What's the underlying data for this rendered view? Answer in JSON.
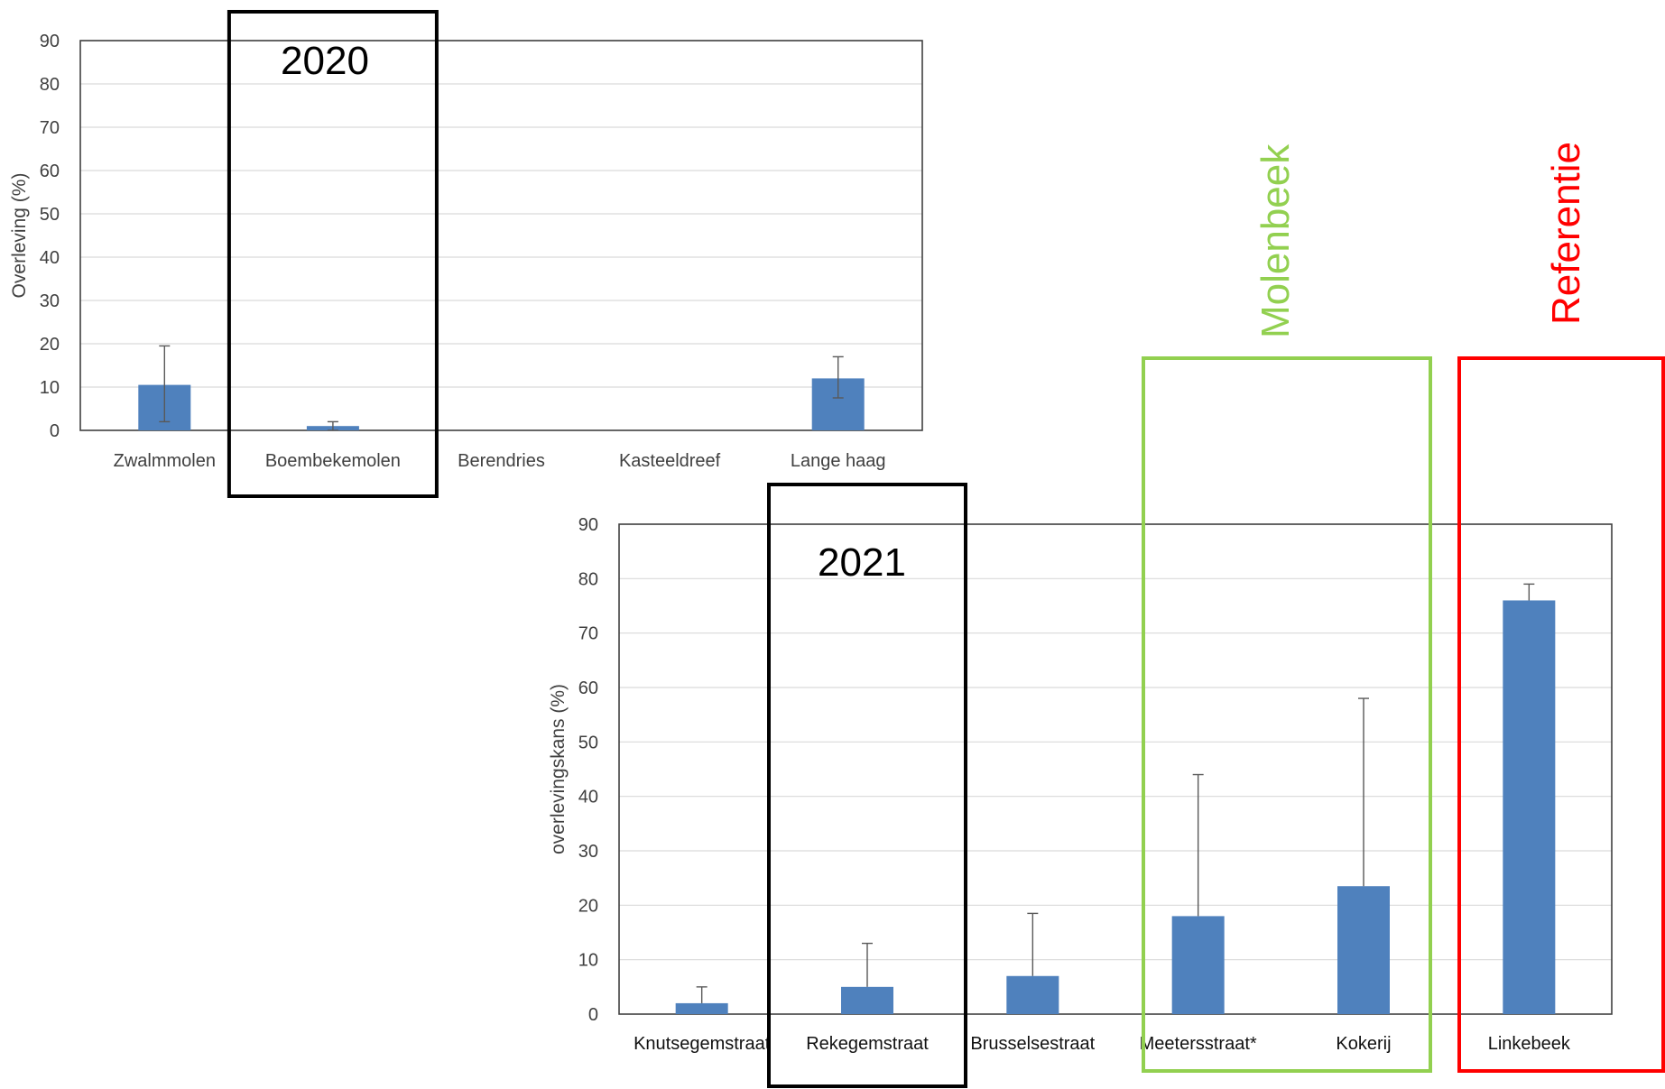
{
  "chart_data": [
    {
      "type": "bar",
      "title": "2020",
      "ylabel": "Overleving (%)",
      "ylim": [
        0,
        90
      ],
      "yticks": [
        0,
        10,
        20,
        30,
        40,
        50,
        60,
        70,
        80,
        90
      ],
      "grid": true,
      "categories": [
        "Zwalmmolen",
        "Boembekemolen",
        "Berendries",
        "Kasteeldreef",
        "Lange haag"
      ],
      "values": [
        10.5,
        1,
        0,
        0,
        12
      ],
      "error_upper": [
        19.5,
        2,
        0,
        0,
        17
      ],
      "error_lower": [
        2,
        0,
        0,
        0,
        7.5
      ],
      "color": "#4f81bd",
      "highlight": {
        "categories": [
          "Boembekemolen"
        ],
        "color": "#000000"
      }
    },
    {
      "type": "bar",
      "title": "2021",
      "ylabel": "overlevingskans (%)",
      "ylim": [
        0,
        90
      ],
      "yticks": [
        0,
        10,
        20,
        30,
        40,
        50,
        60,
        70,
        80,
        90
      ],
      "grid": true,
      "categories": [
        "Knutsegemstraat",
        "Rekegemstraat",
        "Brusselsestraat",
        "Meetersstraat*",
        "Kokerij",
        "Linkebeek"
      ],
      "values": [
        2,
        5,
        7,
        18,
        23.5,
        76
      ],
      "error_upper": [
        5,
        13,
        18.5,
        44,
        58,
        79
      ],
      "color": "#4f81bd",
      "highlight": {
        "categories": [
          "Rekegemstraat"
        ],
        "color": "#000000"
      },
      "groups": [
        {
          "label": "Molenbeek",
          "categories": [
            "Meetersstraat*",
            "Kokerij"
          ],
          "color": "#92d050"
        },
        {
          "label": "Referentie",
          "categories": [
            "Linkebeek"
          ],
          "color": "#ff0000"
        }
      ]
    }
  ]
}
